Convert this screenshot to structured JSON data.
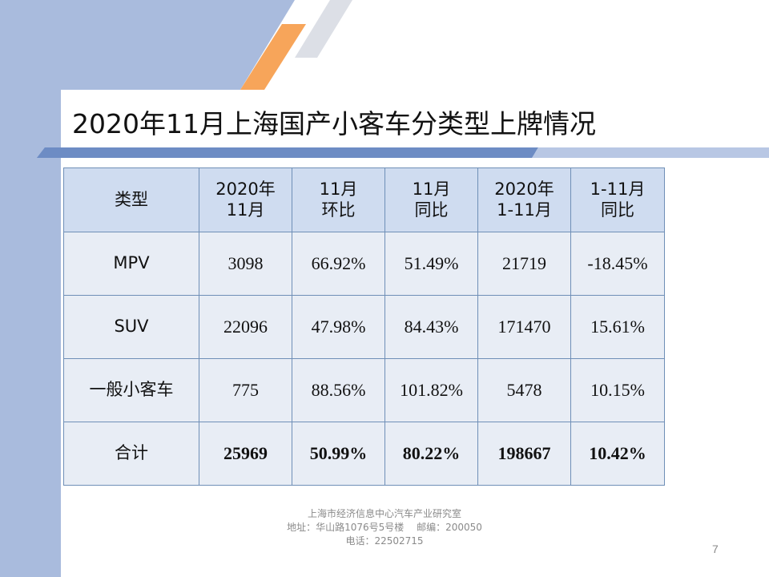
{
  "slide": {
    "title": "2020年11月上海国产小客车分类型上牌情况",
    "page_number": "7",
    "colors": {
      "left_band": "#a9bbdd",
      "accent_orange": "#f7a55a",
      "header_fill": "#cfdcf0",
      "row_fill": "#e8edf5",
      "border": "#6f8fb7"
    }
  },
  "table": {
    "headers": [
      {
        "line1": "类型",
        "line2": ""
      },
      {
        "line1": "2020年",
        "line2": "11月"
      },
      {
        "line1": "11月",
        "line2": "环比"
      },
      {
        "line1": "11月",
        "line2": "同比"
      },
      {
        "line1": "2020年",
        "line2": "1-11月"
      },
      {
        "line1": "1-11月",
        "line2": "同比"
      }
    ],
    "rows": [
      [
        "MPV",
        "3098",
        "66.92%",
        "51.49%",
        "21719",
        "-18.45%"
      ],
      [
        "SUV",
        "22096",
        "47.98%",
        "84.43%",
        "171470",
        "15.61%"
      ],
      [
        "一般小客车",
        "775",
        "88.56%",
        "101.82%",
        "5478",
        "10.15%"
      ],
      [
        "合计",
        "25969",
        "50.99%",
        "80.22%",
        "198667",
        "10.42%"
      ]
    ]
  },
  "footer": {
    "line1": "上海市经济信息中心汽车产业研究室",
    "line2": "地址：华山路1076号5号楼　 邮编：200050",
    "line3": "电话：22502715"
  }
}
